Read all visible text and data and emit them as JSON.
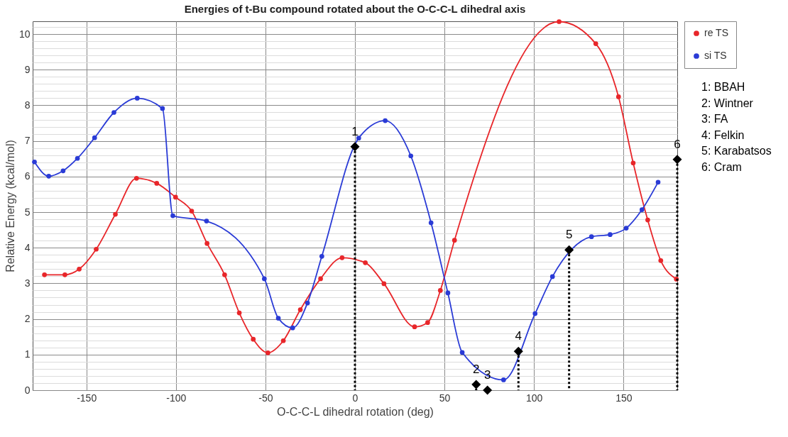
{
  "chart_data": {
    "type": "line",
    "title": "Energies of t-Bu compound rotated about the O-C-C-L dihedral axis",
    "xlabel": "O-C-C-L dihedral rotation (deg)",
    "ylabel": "Relative Energy (kcal/mol)",
    "xlim": [
      -180,
      180
    ],
    "xticks": [
      -150,
      -100,
      -50,
      0,
      50,
      100,
      150
    ],
    "ylim": [
      0,
      10.36
    ],
    "yticks": [
      0,
      {
        "value": 0.2,
        "label": null
      },
      {
        "value": 0.4,
        "label": null
      },
      {
        "value": 0.6,
        "label": null
      },
      {
        "value": 0.8,
        "label": null
      },
      1,
      {
        "value": 1.2,
        "label": null
      },
      {
        "value": 1.4,
        "label": null
      },
      {
        "value": 1.6,
        "label": null
      },
      {
        "value": 1.8,
        "label": null
      },
      2,
      {
        "value": 2.2,
        "label": null
      },
      {
        "value": 2.4,
        "label": null
      },
      {
        "value": 2.6,
        "label": null
      },
      {
        "value": 2.8,
        "label": null
      },
      3,
      {
        "value": 3.2,
        "label": null
      },
      {
        "value": 3.4,
        "label": null
      },
      {
        "value": 3.6,
        "label": null
      },
      {
        "value": 3.8,
        "label": null
      },
      4,
      {
        "value": 4.2,
        "label": null
      },
      {
        "value": 4.4,
        "label": null
      },
      {
        "value": 4.6,
        "label": null
      },
      {
        "value": 4.8,
        "label": null
      },
      5,
      {
        "value": 5.2,
        "label": null
      },
      {
        "value": 5.4,
        "label": null
      },
      {
        "value": 5.6,
        "label": null
      },
      {
        "value": 5.8,
        "label": null
      },
      6,
      {
        "value": 6.2,
        "label": null
      },
      {
        "value": 6.4,
        "label": null
      },
      {
        "value": 6.6,
        "label": null
      },
      {
        "value": 6.8,
        "label": null
      },
      7,
      {
        "value": 7.2,
        "label": null
      },
      {
        "value": 7.4,
        "label": null
      },
      {
        "value": 7.6,
        "label": null
      },
      {
        "value": 7.8,
        "label": null
      },
      8,
      {
        "value": 8.2,
        "label": null
      },
      {
        "value": 8.4,
        "label": null
      },
      {
        "value": 8.6,
        "label": null
      },
      {
        "value": 8.8,
        "label": null
      },
      9,
      {
        "value": 9.2,
        "label": null
      },
      {
        "value": 9.4,
        "label": null
      },
      {
        "value": 9.6,
        "label": null
      },
      {
        "value": 9.8,
        "label": null
      },
      10,
      {
        "value": 10.2,
        "label": null
      }
    ],
    "grid": true,
    "legend": "top right",
    "marker": "circle",
    "series": [
      {
        "name": "re TS",
        "color": "#e8262a",
        "x": [
          -173.4,
          -162,
          -154,
          -144.5,
          -133.8,
          -122,
          -110.7,
          -100.2,
          -91.2,
          -82.6,
          -72.8,
          -64.6,
          -56.8,
          -48.6,
          -40,
          -30.5,
          -19.2,
          -7.2,
          5.8,
          16.2,
          33.3,
          40.6,
          47.7,
          55.6,
          114,
          134.5,
          147.2,
          155.4,
          163.5,
          170.8,
          179.5
        ],
        "values": [
          3.24,
          3.24,
          3.4,
          3.96,
          4.94,
          5.95,
          5.81,
          5.42,
          5.03,
          4.12,
          3.24,
          2.17,
          1.43,
          1.05,
          1.39,
          2.26,
          3.13,
          3.72,
          3.58,
          2.99,
          1.78,
          1.9,
          2.8,
          4.21,
          10.35,
          9.73,
          8.24,
          6.38,
          4.78,
          3.64,
          3.12
        ]
      },
      {
        "name": "si TS",
        "color": "#2a3bd6",
        "x": [
          -179,
          -171,
          -163,
          -155,
          -145.4,
          -134.6,
          -121.6,
          -107.5,
          -101.7,
          -82.9,
          -50.6,
          -42.8,
          -34.8,
          -26.5,
          -18.5,
          2.1,
          16.9,
          31.2,
          42.5,
          51.9,
          59.9,
          83,
          100.6,
          110.3,
          132.1,
          142.5,
          151.5,
          160.3,
          169.3
        ],
        "values": [
          6.41,
          6.01,
          6.16,
          6.51,
          7.09,
          7.8,
          8.2,
          7.91,
          4.9,
          4.75,
          3.13,
          2.02,
          1.75,
          2.45,
          3.76,
          7.08,
          7.57,
          6.58,
          4.7,
          2.73,
          1.06,
          0.29,
          2.15,
          3.19,
          4.31,
          4.37,
          4.55,
          5.07,
          5.84
        ]
      },
      {
        "type": "lollipop",
        "color": "#000000",
        "marker": "diamond",
        "line_style": "dotted",
        "x": [
          0,
          67.7,
          74,
          91.3,
          119.6,
          180
        ],
        "values": [
          6.84,
          0.16,
          0,
          1.09,
          3.94,
          6.48
        ]
      }
    ],
    "annotations": [
      {
        "text": "1",
        "x": 0,
        "y": 6.84
      },
      {
        "text": "2",
        "x": 67.7,
        "y": 0.16
      },
      {
        "text": "3",
        "x": 74,
        "y": 0
      },
      {
        "text": "4",
        "x": 91.3,
        "y": 1.09
      },
      {
        "text": "5",
        "x": 119.6,
        "y": 3.94
      },
      {
        "text": "6",
        "x": 180,
        "y": 6.48
      },
      "1: BBAH",
      "2: Wintner",
      "3: FA",
      "4: Felkin",
      "5: Karabatsos",
      "6: Cram"
    ]
  }
}
